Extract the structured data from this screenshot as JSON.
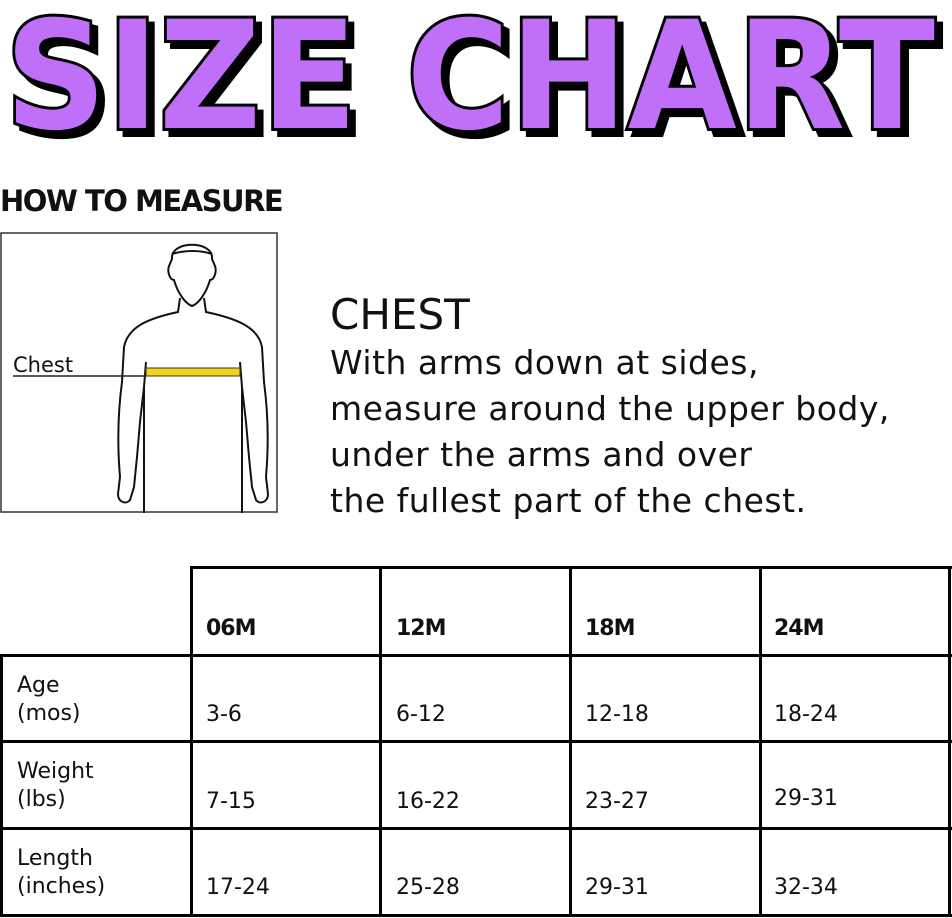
{
  "title": "SIZE CHART",
  "colors": {
    "title_fill": "#c070f8",
    "tape": "#f3d21c"
  },
  "how_to_measure": "HOW TO MEASURE",
  "figure": {
    "label": "Chest"
  },
  "chest": {
    "heading": "CHEST",
    "lines": [
      "With arms down at sides,",
      "measure around the upper body,",
      "under the arms and over",
      "the fullest part of the chest."
    ]
  },
  "table": {
    "columns": [
      "06M",
      "12M",
      "18M",
      "24M"
    ],
    "rows": [
      {
        "label": [
          "Age",
          "(mos)"
        ],
        "values": [
          "3-6",
          "6-12",
          "12-18",
          "18-24"
        ]
      },
      {
        "label": [
          "Weight",
          "(lbs)"
        ],
        "values": [
          "7-15",
          "16-22",
          "23-27",
          "29-31"
        ]
      },
      {
        "label": [
          "Length",
          "(inches)"
        ],
        "values": [
          "17-24",
          "25-28",
          "29-31",
          "32-34"
        ]
      }
    ]
  }
}
